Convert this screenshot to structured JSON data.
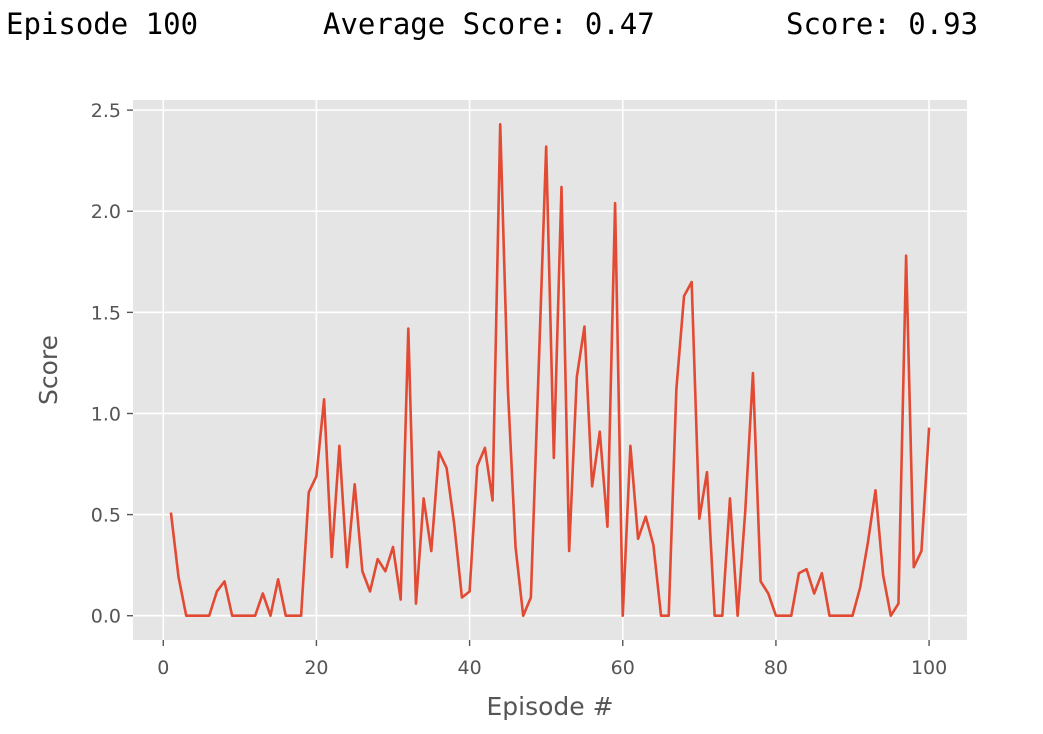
{
  "log": {
    "episode_text": "Episode 100",
    "avg_text": "Average Score: 0.47",
    "score_text": "Score: 0.93"
  },
  "colors": {
    "plot_background": "#e5e5e5",
    "grid": "#ffffff",
    "line": "#e24a33",
    "tick_text": "#555555"
  },
  "chart_data": {
    "type": "line",
    "title": "",
    "xlabel": "Episode #",
    "ylabel": "Score",
    "xlim": [
      -3.95,
      104.95
    ],
    "ylim": [
      -0.12,
      2.55
    ],
    "x_ticks": [
      0,
      20,
      40,
      60,
      80,
      100
    ],
    "x_tick_labels": [
      "0",
      "20",
      "40",
      "60",
      "80",
      "100"
    ],
    "y_ticks": [
      0.0,
      0.5,
      1.0,
      1.5,
      2.0,
      2.5
    ],
    "y_tick_labels": [
      "0.0",
      "0.5",
      "1.0",
      "1.5",
      "2.0",
      "2.5"
    ],
    "grid": true,
    "style": "ggplot",
    "series": [
      {
        "x": [
          1,
          2,
          3,
          4,
          5,
          6,
          7,
          8,
          9,
          10,
          11,
          12,
          13,
          14,
          15,
          16,
          17,
          18,
          19,
          20,
          21,
          22,
          23,
          24,
          25,
          26,
          27,
          28,
          29,
          30,
          31,
          32,
          33,
          34,
          35,
          36,
          37,
          38,
          39,
          40,
          41,
          42,
          43,
          44,
          45,
          46,
          47,
          48,
          49,
          50,
          51,
          52,
          53,
          54,
          55,
          56,
          57,
          58,
          59,
          60,
          61,
          62,
          63,
          64,
          65,
          66,
          67,
          68,
          69,
          70,
          71,
          72,
          73,
          74,
          75,
          76,
          77,
          78,
          79,
          80,
          81,
          82,
          83,
          84,
          85,
          86,
          87,
          88,
          89,
          90,
          91,
          92,
          93,
          94,
          95,
          96,
          97,
          98,
          99,
          100
        ],
        "values": [
          0.51,
          0.19,
          0.0,
          0.0,
          0.0,
          0.0,
          0.12,
          0.17,
          0.0,
          0.0,
          0.0,
          0.0,
          0.11,
          0.0,
          0.18,
          0.0,
          0.0,
          0.0,
          0.61,
          0.69,
          1.07,
          0.29,
          0.84,
          0.24,
          0.65,
          0.22,
          0.12,
          0.28,
          0.22,
          0.34,
          0.08,
          1.42,
          0.06,
          0.58,
          0.32,
          0.81,
          0.73,
          0.45,
          0.09,
          0.12,
          0.74,
          0.83,
          0.57,
          2.43,
          1.12,
          0.34,
          0.0,
          0.09,
          1.2,
          2.32,
          0.78,
          2.12,
          0.32,
          1.18,
          1.43,
          0.64,
          0.91,
          0.44,
          2.04,
          0.0,
          0.84,
          0.38,
          0.49,
          0.35,
          0.0,
          0.0,
          1.12,
          1.58,
          1.65,
          0.48,
          0.71,
          0.0,
          0.0,
          0.58,
          0.0,
          0.52,
          1.2,
          0.17,
          0.11,
          0.0,
          0.0,
          0.0,
          0.21,
          0.23,
          0.11,
          0.21,
          0.0,
          0.0,
          0.0,
          0.0,
          0.14,
          0.36,
          0.62,
          0.2,
          0.0,
          0.06,
          1.78,
          0.24,
          0.32,
          0.93
        ]
      }
    ]
  }
}
